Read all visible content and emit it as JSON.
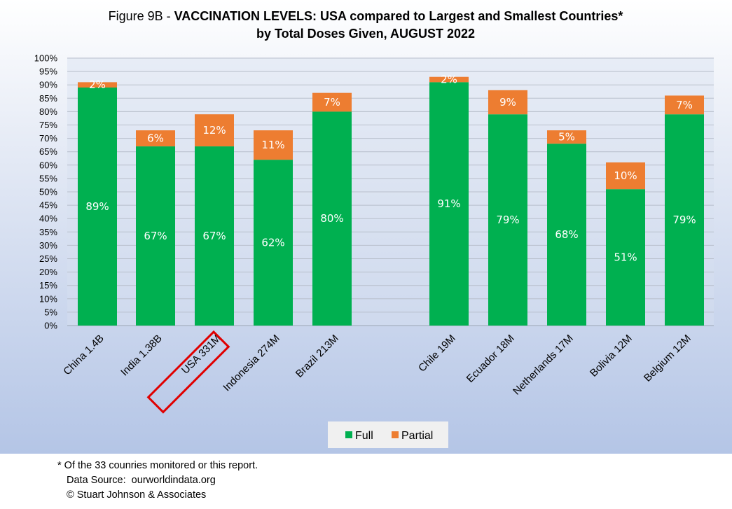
{
  "chart_data": {
    "type": "bar",
    "stacked": true,
    "title_prefix": "Figure 9B - ",
    "title_bold": "VACCINATION LEVELS:  USA compared to Largest and Smallest Countries*",
    "subtitle": "by Total Doses Given, AUGUST 2022",
    "categories": [
      "China 1.4B",
      "India 1.38B",
      "USA 331M",
      "Indonesia 274M",
      "Brazil 213M",
      "Chile 19M",
      "Ecuador 18M",
      "Netherlands 17M",
      "Bolivia 12M",
      "Belgium 12M"
    ],
    "series": [
      {
        "name": "Full",
        "color": "#00b050",
        "values": [
          89,
          67,
          67,
          62,
          80,
          91,
          79,
          68,
          51,
          79
        ],
        "labels": [
          "89%",
          "67%",
          "67%",
          "62%",
          "80%",
          "91%",
          "79%",
          "68%",
          "51%",
          "79%"
        ]
      },
      {
        "name": "Partial",
        "color": "#ed7d31",
        "values": [
          2,
          6,
          12,
          11,
          7,
          2,
          9,
          5,
          10,
          7
        ],
        "labels": [
          "2%",
          "6%",
          "12%",
          "11%",
          "7%",
          "2%",
          "9%",
          "5%",
          "10%",
          "7%"
        ]
      }
    ],
    "ylim": [
      0,
      100
    ],
    "yticks": [
      "0%",
      "5%",
      "10%",
      "15%",
      "20%",
      "25%",
      "30%",
      "35%",
      "40%",
      "45%",
      "50%",
      "55%",
      "60%",
      "65%",
      "70%",
      "75%",
      "80%",
      "85%",
      "90%",
      "95%",
      "100%"
    ],
    "grid": true,
    "legend_position": "bottom",
    "highlighted_category": "USA 331M",
    "highlight_color": "#e00000"
  },
  "footnote": {
    "line1": "* Of the 33 counries monitored or this report.",
    "line2": "Data Source:  ourworldindata.org",
    "line3": "© Stuart Johnson & Associates"
  }
}
